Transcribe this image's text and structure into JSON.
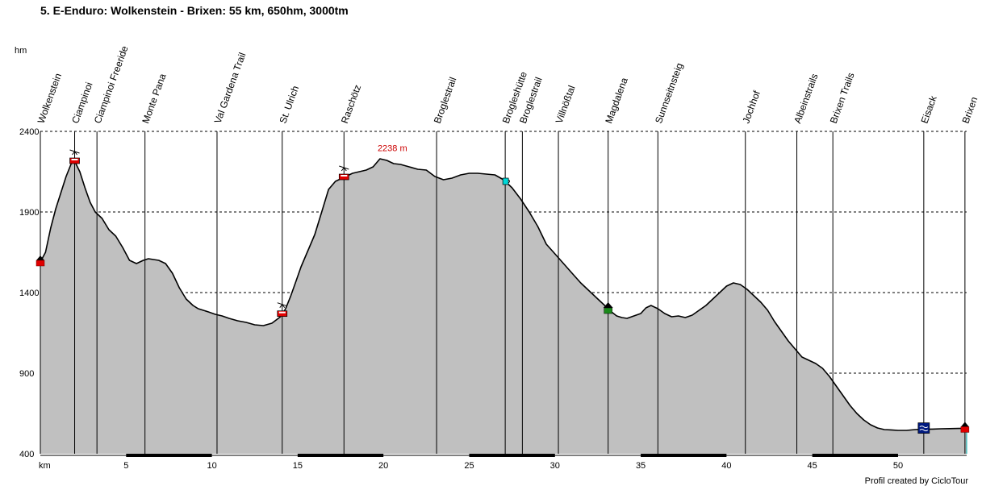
{
  "header": {
    "title": "5. E-Enduro: Wolkenstein - Brixen: 55 km, 650hm, 3000tm"
  },
  "footer": {
    "credit": "Profil created by CicloTour"
  },
  "chart_data": {
    "type": "area",
    "title": "5. E-Enduro: Wolkenstein - Brixen: 55 km, 650hm, 3000tm",
    "xlabel": "km",
    "ylabel": "hm",
    "xlim": [
      0,
      54
    ],
    "ylim": [
      400,
      2400
    ],
    "x_ticks": [
      0,
      5,
      10,
      15,
      20,
      25,
      30,
      35,
      40,
      45,
      50
    ],
    "x_tick_labels": [
      "km",
      "5",
      "10",
      "15",
      "20",
      "25",
      "30",
      "35",
      "40",
      "45",
      "50"
    ],
    "y_ticks": [
      400,
      900,
      1400,
      1900,
      2400
    ],
    "grid": "horizontal dashed",
    "colors": {
      "fill": "#c0c0c0",
      "line": "#000000",
      "max_label": "#cc0000",
      "edge": "#00b0b0"
    },
    "max_annotation": {
      "x": 20.6,
      "y": 2238,
      "label": "2238 m"
    },
    "series": [
      {
        "x": [
          0,
          0.3,
          0.6,
          0.9,
          1.2,
          1.5,
          1.8,
          2.0,
          2.3,
          2.6,
          2.9,
          3.2,
          3.6,
          4.0,
          4.4,
          4.8,
          5.2,
          5.6,
          6.0,
          6.3,
          6.6,
          6.9,
          7.3,
          7.7,
          8.1,
          8.5,
          8.9,
          9.2,
          9.5,
          9.8,
          10.2,
          10.6,
          11.0,
          11.5,
          12.0,
          12.5,
          13.0,
          13.5,
          14.0,
          14.3,
          14.6,
          14.9,
          15.2,
          15.6,
          16.0,
          16.4,
          16.8,
          17.2,
          17.5,
          17.8,
          18.2,
          18.6,
          19.0,
          19.4,
          19.8,
          20.2,
          20.6,
          21.0,
          21.5,
          22.0,
          22.5,
          23.0,
          23.5,
          24.0,
          24.5,
          25.0,
          25.5,
          26.0,
          26.5,
          27.0,
          27.5,
          28.0,
          28.5,
          29.0,
          29.5,
          30.0,
          30.5,
          31.0,
          31.5,
          32.0,
          32.5,
          33.0,
          33.3,
          33.6,
          33.9,
          34.2,
          34.6,
          35.0,
          35.3,
          35.6,
          36.0,
          36.4,
          36.8,
          37.2,
          37.6,
          38.0,
          38.4,
          38.8,
          39.2,
          39.6,
          40.0,
          40.4,
          40.8,
          41.2,
          41.6,
          42.0,
          42.4,
          42.8,
          43.2,
          43.6,
          44.0,
          44.4,
          44.8,
          45.2,
          45.6,
          46.0,
          46.4,
          46.8,
          47.2,
          47.6,
          48.0,
          48.4,
          48.8,
          49.2,
          49.6,
          50.0,
          50.5,
          51.0,
          51.5,
          52.0,
          52.5,
          53.0,
          53.5,
          54.0
        ],
        "y": [
          1590,
          1650,
          1800,
          1920,
          2020,
          2120,
          2200,
          2215,
          2150,
          2050,
          1960,
          1900,
          1860,
          1790,
          1750,
          1680,
          1600,
          1580,
          1600,
          1610,
          1605,
          1600,
          1580,
          1520,
          1430,
          1360,
          1320,
          1300,
          1290,
          1280,
          1265,
          1255,
          1240,
          1225,
          1215,
          1200,
          1195,
          1210,
          1250,
          1300,
          1380,
          1470,
          1560,
          1660,
          1760,
          1900,
          2040,
          2090,
          2105,
          2120,
          2140,
          2150,
          2160,
          2180,
          2230,
          2220,
          2200,
          2195,
          2180,
          2165,
          2160,
          2120,
          2100,
          2110,
          2130,
          2140,
          2140,
          2135,
          2130,
          2100,
          2050,
          1980,
          1900,
          1810,
          1700,
          1640,
          1580,
          1520,
          1460,
          1410,
          1360,
          1310,
          1280,
          1255,
          1245,
          1240,
          1255,
          1270,
          1305,
          1320,
          1300,
          1270,
          1250,
          1255,
          1245,
          1260,
          1290,
          1320,
          1360,
          1400,
          1440,
          1460,
          1450,
          1420,
          1380,
          1340,
          1290,
          1220,
          1160,
          1100,
          1050,
          1000,
          980,
          960,
          930,
          880,
          820,
          760,
          700,
          650,
          610,
          580,
          560,
          550,
          548,
          545,
          545,
          550,
          552,
          553,
          555,
          556,
          557,
          558
        ]
      }
    ],
    "waypoints": [
      {
        "name": "Wolkenstein",
        "x": 0.0,
        "marker": "start"
      },
      {
        "name": "Ciampinoi",
        "x": 2.0,
        "marker": "lift"
      },
      {
        "name": "Ciampinoi Freeride",
        "x": 3.3,
        "marker": "none"
      },
      {
        "name": "Monte Pana",
        "x": 6.1,
        "marker": "none"
      },
      {
        "name": "Val Gardena Trail",
        "x": 10.3,
        "marker": "none"
      },
      {
        "name": "St. Ulrich",
        "x": 14.1,
        "marker": "lift"
      },
      {
        "name": "Raschötz",
        "x": 17.7,
        "marker": "lift"
      },
      {
        "name": "Broglestrail",
        "x": 23.1,
        "marker": "none"
      },
      {
        "name": "Brogleshütte",
        "x": 27.1,
        "marker": "hut"
      },
      {
        "name": "Broglestrail",
        "x": 28.1,
        "marker": "none"
      },
      {
        "name": "Villnößtal",
        "x": 30.2,
        "marker": "none"
      },
      {
        "name": "Magdalena",
        "x": 33.1,
        "marker": "village"
      },
      {
        "name": "Sunnseitnsteig",
        "x": 36.0,
        "marker": "none"
      },
      {
        "name": "Jochhof",
        "x": 41.1,
        "marker": "none"
      },
      {
        "name": "Albeinstrails",
        "x": 44.1,
        "marker": "none"
      },
      {
        "name": "Brixen Trails",
        "x": 46.2,
        "marker": "none"
      },
      {
        "name": "Eisack",
        "x": 51.5,
        "marker": "water"
      },
      {
        "name": "Brixen",
        "x": 53.9,
        "marker": "end"
      }
    ]
  }
}
